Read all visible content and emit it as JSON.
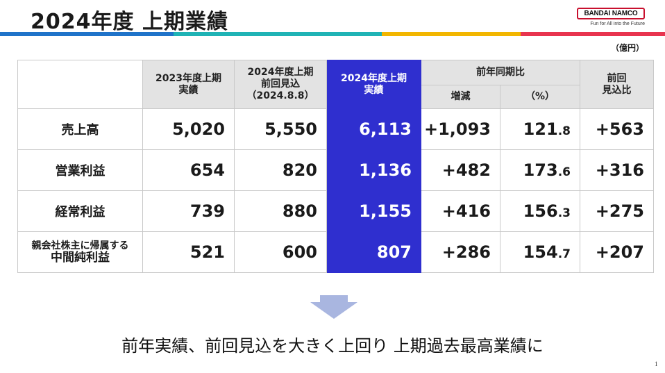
{
  "header": {
    "title": "2024年度 上期業績",
    "stripe_colors": [
      "#1f73c9",
      "#1fb3b5",
      "#f2b600",
      "#e8344f"
    ]
  },
  "logo": {
    "name": "BANDAI NAMCO",
    "tagline": "Fun for All into the Future",
    "border_color": "#c8102e"
  },
  "unit": "（億円）",
  "table": {
    "headers": {
      "col_2023": [
        "2023年度上期",
        "実績"
      ],
      "col_forecast": [
        "2024年度上期",
        "前回見込",
        "（2024.8.8）"
      ],
      "col_2024": [
        "2024年度上期",
        "実績"
      ],
      "yoy_group": "前年同期比",
      "yoy_change": "増減",
      "yoy_pct": "（%）",
      "vs_forecast": [
        "前回",
        "見込比"
      ]
    },
    "rows": [
      {
        "label": "売上高",
        "label_sub": "",
        "prev": "5,020",
        "forecast": "5,550",
        "actual": "6,113",
        "change": "+1,093",
        "pct_int": "121",
        "pct_dec": ".8",
        "vs_forecast": "+563"
      },
      {
        "label": "営業利益",
        "label_sub": "",
        "prev": "654",
        "forecast": "820",
        "actual": "1,136",
        "change": "+482",
        "pct_int": "173",
        "pct_dec": ".6",
        "vs_forecast": "+316"
      },
      {
        "label": "経常利益",
        "label_sub": "",
        "prev": "739",
        "forecast": "880",
        "actual": "1,155",
        "change": "+416",
        "pct_int": "156",
        "pct_dec": ".3",
        "vs_forecast": "+275"
      },
      {
        "label": "親会社株主に帰属する",
        "label_sub": "中間純利益",
        "prev": "521",
        "forecast": "600",
        "actual": "807",
        "change": "+286",
        "pct_int": "154",
        "pct_dec": ".7",
        "vs_forecast": "+207"
      }
    ],
    "highlight_color": "#2f2fcf"
  },
  "conclusion": "前年実績、前回見込を大きく上回り 上期過去最高業績に",
  "page_number": "1"
}
